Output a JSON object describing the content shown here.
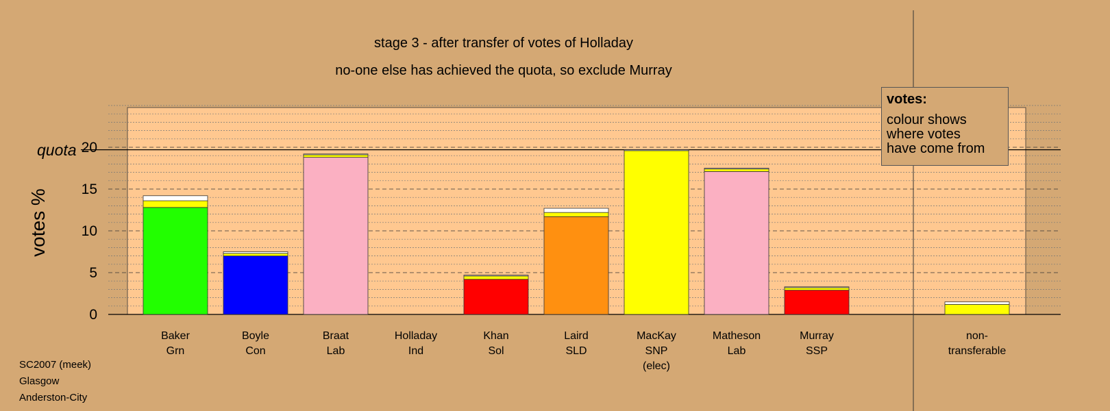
{
  "chart_data": {
    "type": "bar",
    "stacked": true,
    "title": "stage 3 - after transfer of votes of Holladay",
    "subtitle": "no-one else has achieved the quota, so exclude Murray",
    "ylabel": "votes %",
    "ylim": [
      0,
      25
    ],
    "yticks": [
      0,
      5,
      10,
      15,
      20
    ],
    "quota": 19.7,
    "quota_label": "quota",
    "grid": true,
    "candidates": [
      {
        "name": "Baker",
        "party": "Grn",
        "note": "",
        "segments": [
          {
            "value": 12.8,
            "color": "#22ff00"
          },
          {
            "value": 0.8,
            "color": "#ffff00"
          },
          {
            "value": 0.6,
            "color": "#ffffff"
          }
        ]
      },
      {
        "name": "Boyle",
        "party": "Con",
        "note": "",
        "segments": [
          {
            "value": 7.0,
            "color": "#0000ff"
          },
          {
            "value": 0.3,
            "color": "#ffff00"
          },
          {
            "value": 0.2,
            "color": "#ffffff"
          }
        ]
      },
      {
        "name": "Braat",
        "party": "Lab",
        "note": "",
        "segments": [
          {
            "value": 18.8,
            "color": "#fbb0c2"
          },
          {
            "value": 0.3,
            "color": "#ffff00"
          },
          {
            "value": 0.1,
            "color": "#ffffff"
          }
        ]
      },
      {
        "name": "Holladay",
        "party": "Ind",
        "note": "",
        "segments": []
      },
      {
        "name": "Khan",
        "party": "Sol",
        "note": "",
        "segments": [
          {
            "value": 4.2,
            "color": "#ff0000"
          },
          {
            "value": 0.4,
            "color": "#ffff00"
          },
          {
            "value": 0.1,
            "color": "#ffffff"
          }
        ]
      },
      {
        "name": "Laird",
        "party": "SLD",
        "note": "",
        "segments": [
          {
            "value": 11.7,
            "color": "#ff9010"
          },
          {
            "value": 0.5,
            "color": "#ffff00"
          },
          {
            "value": 0.5,
            "color": "#ffffff"
          }
        ]
      },
      {
        "name": "MacKay",
        "party": "SNP",
        "note": "(elec)",
        "segments": [
          {
            "value": 19.6,
            "color": "#ffff00"
          },
          {
            "value": 0.1,
            "color": "#ffffff"
          }
        ]
      },
      {
        "name": "Matheson",
        "party": "Lab",
        "note": "",
        "segments": [
          {
            "value": 17.1,
            "color": "#fbb0c2"
          },
          {
            "value": 0.3,
            "color": "#ffff00"
          },
          {
            "value": 0.1,
            "color": "#ffffff"
          }
        ]
      },
      {
        "name": "Murray",
        "party": "SSP",
        "note": "",
        "segments": [
          {
            "value": 2.9,
            "color": "#ff0000"
          },
          {
            "value": 0.3,
            "color": "#ffff00"
          },
          {
            "value": 0.1,
            "color": "#ffffff"
          }
        ]
      }
    ],
    "nontransferable": {
      "label": "non-\ntransferable",
      "segments": [
        {
          "value": 1.2,
          "color": "#ffff00"
        },
        {
          "value": 0.3,
          "color": "#ffffff"
        }
      ]
    }
  },
  "legend": {
    "title": "votes:",
    "text": "colour shows\nwhere votes\nhave come from"
  },
  "footer": [
    "SC2007 (meek)",
    "Glasgow",
    "Anderston-City"
  ]
}
